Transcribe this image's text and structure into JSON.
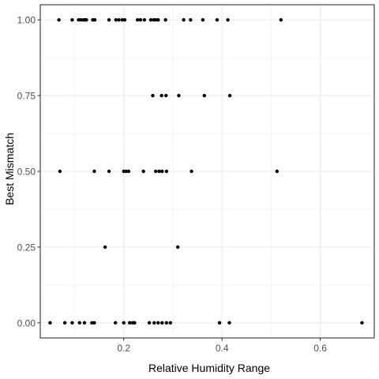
{
  "chart_data": {
    "type": "scatter",
    "title": "",
    "xlabel": "Relative Humidity Range",
    "ylabel": "Best Mismatch",
    "xlim": [
      0.03,
      0.71
    ],
    "ylim": [
      -0.05,
      1.05
    ],
    "x_ticks": [
      0.2,
      0.4,
      0.6
    ],
    "x_tick_labels": [
      "0.2",
      "0.4",
      "0.6"
    ],
    "x_minor_ticks": [
      0.1,
      0.3,
      0.5
    ],
    "y_ticks": [
      0,
      0.25,
      0.5,
      0.75,
      1
    ],
    "y_tick_labels": [
      "0.00",
      "0.25",
      "0.50",
      "0.75",
      "1.00"
    ],
    "y_minor_ticks": [
      0.125,
      0.375,
      0.625,
      0.875
    ],
    "grid": true,
    "theme": "bw",
    "colors": {
      "points": "#000000",
      "grid": "#ebebeb",
      "panel_border": "#333333",
      "tick_text": "#4d4d4d"
    },
    "series": [
      {
        "points": [
          [
            0.068,
            1
          ],
          [
            0.095,
            1
          ],
          [
            0.108,
            1
          ],
          [
            0.113,
            1
          ],
          [
            0.118,
            1
          ],
          [
            0.121,
            1
          ],
          [
            0.124,
            1
          ],
          [
            0.137,
            1
          ],
          [
            0.141,
            1
          ],
          [
            0.17,
            1
          ],
          [
            0.184,
            1
          ],
          [
            0.19,
            1
          ],
          [
            0.197,
            1
          ],
          [
            0.202,
            1
          ],
          [
            0.228,
            1
          ],
          [
            0.234,
            1
          ],
          [
            0.242,
            1
          ],
          [
            0.255,
            1
          ],
          [
            0.261,
            1
          ],
          [
            0.265,
            1
          ],
          [
            0.27,
            1
          ],
          [
            0.285,
            1
          ],
          [
            0.322,
            1
          ],
          [
            0.336,
            1
          ],
          [
            0.361,
            1
          ],
          [
            0.39,
            1
          ],
          [
            0.412,
            1
          ],
          [
            0.52,
            1
          ],
          [
            0.259,
            0.75
          ],
          [
            0.277,
            0.75
          ],
          [
            0.286,
            0.75
          ],
          [
            0.312,
            0.75
          ],
          [
            0.364,
            0.75
          ],
          [
            0.416,
            0.75
          ],
          [
            0.07,
            0.5
          ],
          [
            0.14,
            0.5
          ],
          [
            0.17,
            0.5
          ],
          [
            0.2,
            0.5
          ],
          [
            0.205,
            0.5
          ],
          [
            0.21,
            0.5
          ],
          [
            0.24,
            0.5
          ],
          [
            0.265,
            0.5
          ],
          [
            0.272,
            0.5
          ],
          [
            0.278,
            0.5
          ],
          [
            0.287,
            0.5
          ],
          [
            0.338,
            0.5
          ],
          [
            0.512,
            0.5
          ],
          [
            0.162,
            0.25
          ],
          [
            0.31,
            0.25
          ],
          [
            0.05,
            0
          ],
          [
            0.08,
            0
          ],
          [
            0.095,
            0
          ],
          [
            0.11,
            0
          ],
          [
            0.12,
            0
          ],
          [
            0.135,
            0
          ],
          [
            0.14,
            0
          ],
          [
            0.183,
            0
          ],
          [
            0.2,
            0
          ],
          [
            0.212,
            0
          ],
          [
            0.218,
            0
          ],
          [
            0.222,
            0
          ],
          [
            0.252,
            0
          ],
          [
            0.262,
            0
          ],
          [
            0.27,
            0
          ],
          [
            0.278,
            0
          ],
          [
            0.287,
            0
          ],
          [
            0.295,
            0
          ],
          [
            0.395,
            0
          ],
          [
            0.415,
            0
          ],
          [
            0.685,
            0
          ]
        ]
      }
    ]
  }
}
